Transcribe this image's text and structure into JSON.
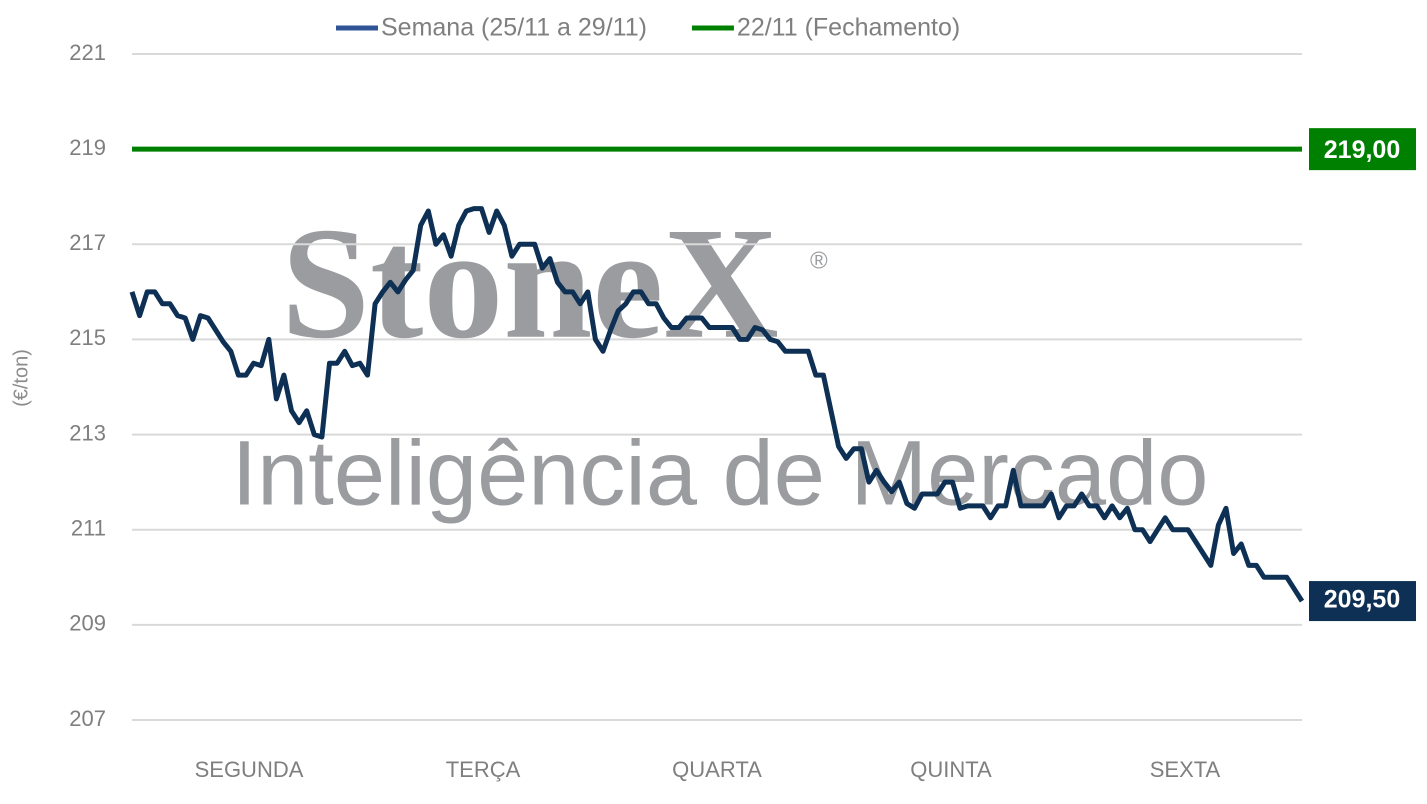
{
  "chart_data": {
    "type": "line",
    "y_label": "(€/ton)",
    "watermark": {
      "brand": "StoneX",
      "mark": "®",
      "tagline": "Inteligência de Mercado"
    },
    "day_labels": [
      "SEGUNDA",
      "TERÇA",
      "QUARTA",
      "QUINTA",
      "SEXTA"
    ],
    "ylim": [
      207,
      221
    ],
    "yticks": [
      207,
      209,
      211,
      213,
      215,
      217,
      219,
      221
    ],
    "grid": true,
    "series": [
      {
        "name": "Semana (25/11 a 29/11)",
        "color": "#0d3054",
        "last_value_label": "209,50",
        "values": [
          216.0,
          215.5,
          216.0,
          216.0,
          215.75,
          215.75,
          215.5,
          215.45,
          215.0,
          215.5,
          215.45,
          215.2,
          214.95,
          214.75,
          214.25,
          214.25,
          214.5,
          214.45,
          215.0,
          213.75,
          214.25,
          213.5,
          213.25,
          213.5,
          213.0,
          212.95,
          214.5,
          214.5,
          214.75,
          214.45,
          214.5,
          214.25,
          215.75,
          216.0,
          216.2,
          216.0,
          216.25,
          216.45,
          217.4,
          217.7,
          217.0,
          217.2,
          216.75,
          217.4,
          217.7,
          217.75,
          217.75,
          217.25,
          217.7,
          217.4,
          216.75,
          217.0,
          217.0,
          217.0,
          216.5,
          216.7,
          216.2,
          216.0,
          216.0,
          215.75,
          216.0,
          215.0,
          214.75,
          215.2,
          215.6,
          215.75,
          216.0,
          216.0,
          215.75,
          215.75,
          215.45,
          215.25,
          215.25,
          215.45,
          215.45,
          215.45,
          215.25,
          215.25,
          215.25,
          215.25,
          215.0,
          215.0,
          215.25,
          215.2,
          215.0,
          214.95,
          214.75,
          214.75,
          214.75,
          214.75,
          214.25,
          214.25,
          213.5,
          212.75,
          212.5,
          212.7,
          212.7,
          212.0,
          212.25,
          212.0,
          211.8,
          212.0,
          211.55,
          211.45,
          211.75,
          211.75,
          211.75,
          212.0,
          212.0,
          211.45,
          211.5,
          211.5,
          211.5,
          211.25,
          211.5,
          211.5,
          212.25,
          211.5,
          211.5,
          211.5,
          211.5,
          211.75,
          211.25,
          211.5,
          211.5,
          211.75,
          211.5,
          211.5,
          211.25,
          211.5,
          211.25,
          211.45,
          211.0,
          211.0,
          210.75,
          211.0,
          211.25,
          211.0,
          211.0,
          211.0,
          210.75,
          210.5,
          210.25,
          211.1,
          211.45,
          210.5,
          210.7,
          210.25,
          210.25,
          210.0,
          210.0,
          210.0,
          210.0,
          209.75,
          209.5
        ]
      }
    ],
    "reference_lines": [
      {
        "name": "22/11 (Fechamento)",
        "value": 219,
        "label": "219,00",
        "color": "#008000"
      }
    ]
  }
}
